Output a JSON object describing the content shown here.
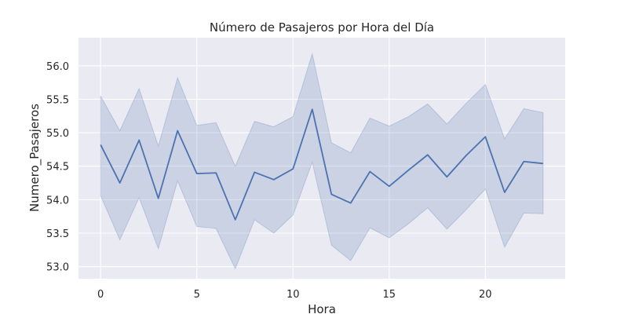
{
  "chart_data": {
    "type": "line",
    "title": "Número de Pasajeros por Hora del Día",
    "xlabel": "Hora",
    "ylabel": "Numero_Pasajeros",
    "xlim": [
      -1.15,
      24.15
    ],
    "ylim": [
      52.82,
      56.42
    ],
    "xticks": [
      0,
      5,
      10,
      15,
      20
    ],
    "xtick_labels": [
      "0",
      "5",
      "10",
      "15",
      "20"
    ],
    "yticks": [
      53.0,
      53.5,
      54.0,
      54.5,
      55.0,
      55.5,
      56.0
    ],
    "ytick_labels": [
      "53.0",
      "53.5",
      "54.0",
      "54.5",
      "55.0",
      "55.5",
      "56.0"
    ],
    "grid": true,
    "background": "#eaeaf2",
    "line_color": "#4c72b0",
    "band_color": "#4c72b0",
    "series": [
      {
        "x": [
          0,
          1,
          2,
          3,
          4,
          5,
          6,
          7,
          8,
          9,
          10,
          11,
          12,
          13,
          14,
          15,
          16,
          17,
          18,
          19,
          20,
          21,
          22,
          23
        ],
        "y": [
          54.82,
          54.25,
          54.89,
          54.02,
          55.03,
          54.39,
          54.4,
          53.7,
          54.41,
          54.3,
          54.46,
          55.35,
          54.08,
          53.95,
          54.42,
          54.2,
          54.44,
          54.67,
          54.34,
          54.66,
          54.94,
          54.11,
          54.57,
          54.54
        ],
        "ci_lower": [
          54.06,
          53.4,
          54.03,
          53.27,
          54.28,
          53.6,
          53.57,
          52.97,
          53.7,
          53.5,
          53.77,
          54.56,
          53.32,
          53.09,
          53.58,
          53.43,
          53.64,
          53.88,
          53.56,
          53.85,
          54.16,
          53.29,
          53.8,
          53.79
        ],
        "ci_upper": [
          55.55,
          55.03,
          55.66,
          54.8,
          55.82,
          55.11,
          55.15,
          54.5,
          55.17,
          55.09,
          55.24,
          56.18,
          54.85,
          54.7,
          55.22,
          55.1,
          55.24,
          55.43,
          55.13,
          55.44,
          55.72,
          54.91,
          55.36,
          55.3
        ]
      }
    ]
  }
}
